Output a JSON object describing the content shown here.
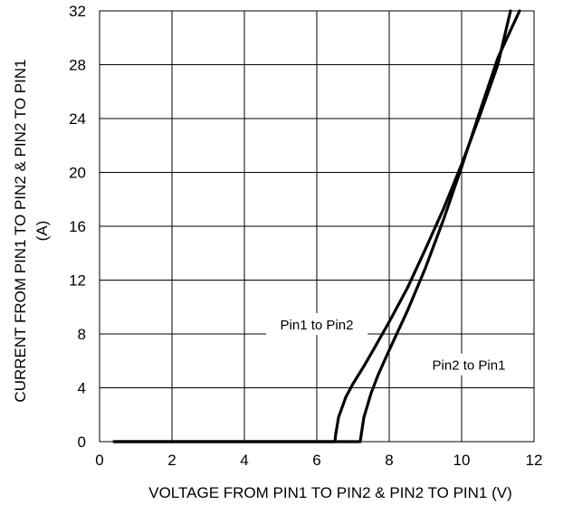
{
  "chart_data": {
    "type": "line",
    "title": "",
    "xlabel": "VOLTAGE FROM PIN1 TO PIN2 & PIN2 TO PIN1 (V)",
    "ylabel_line1": "CURRENT FROM PIN1 TO PIN2 & PIN2 TO PIN1",
    "ylabel_line2": "(A)",
    "xlim": [
      0,
      12
    ],
    "ylim": [
      0,
      32
    ],
    "xticks": [
      0,
      2,
      4,
      6,
      8,
      10,
      12
    ],
    "yticks": [
      0,
      4,
      8,
      12,
      16,
      20,
      24,
      28,
      32
    ],
    "grid": true,
    "legend": "none",
    "series": [
      {
        "name": "Pin1 to Pin2",
        "x": [
          0.4,
          3.0,
          6.0,
          6.5,
          6.52,
          6.6,
          6.8,
          7.0,
          7.3,
          7.6,
          8.0,
          8.5,
          9.0,
          9.5,
          10.0,
          10.5,
          11.0,
          11.35
        ],
        "y": [
          0,
          0,
          0,
          0,
          0.5,
          1.8,
          3.3,
          4.3,
          5.6,
          7.0,
          8.9,
          11.4,
          14.3,
          17.3,
          20.6,
          24.2,
          28.0,
          32.0
        ]
      },
      {
        "name": "Pin2 to Pin1",
        "x": [
          0.4,
          3.0,
          6.0,
          7.2,
          7.22,
          7.3,
          7.5,
          7.7,
          8.0,
          8.5,
          9.0,
          9.5,
          10.0,
          10.5,
          11.0,
          11.6
        ],
        "y": [
          0,
          0,
          0,
          0,
          0.4,
          1.8,
          3.6,
          5.0,
          6.8,
          9.7,
          12.9,
          16.5,
          20.4,
          24.5,
          28.5,
          32.0
        ]
      }
    ],
    "annotations": [
      {
        "text": "Pin1 to Pin2",
        "x": 6.0,
        "y": 8.6
      },
      {
        "text": "Pin2 to Pin1",
        "x": 10.2,
        "y": 5.6
      }
    ]
  }
}
